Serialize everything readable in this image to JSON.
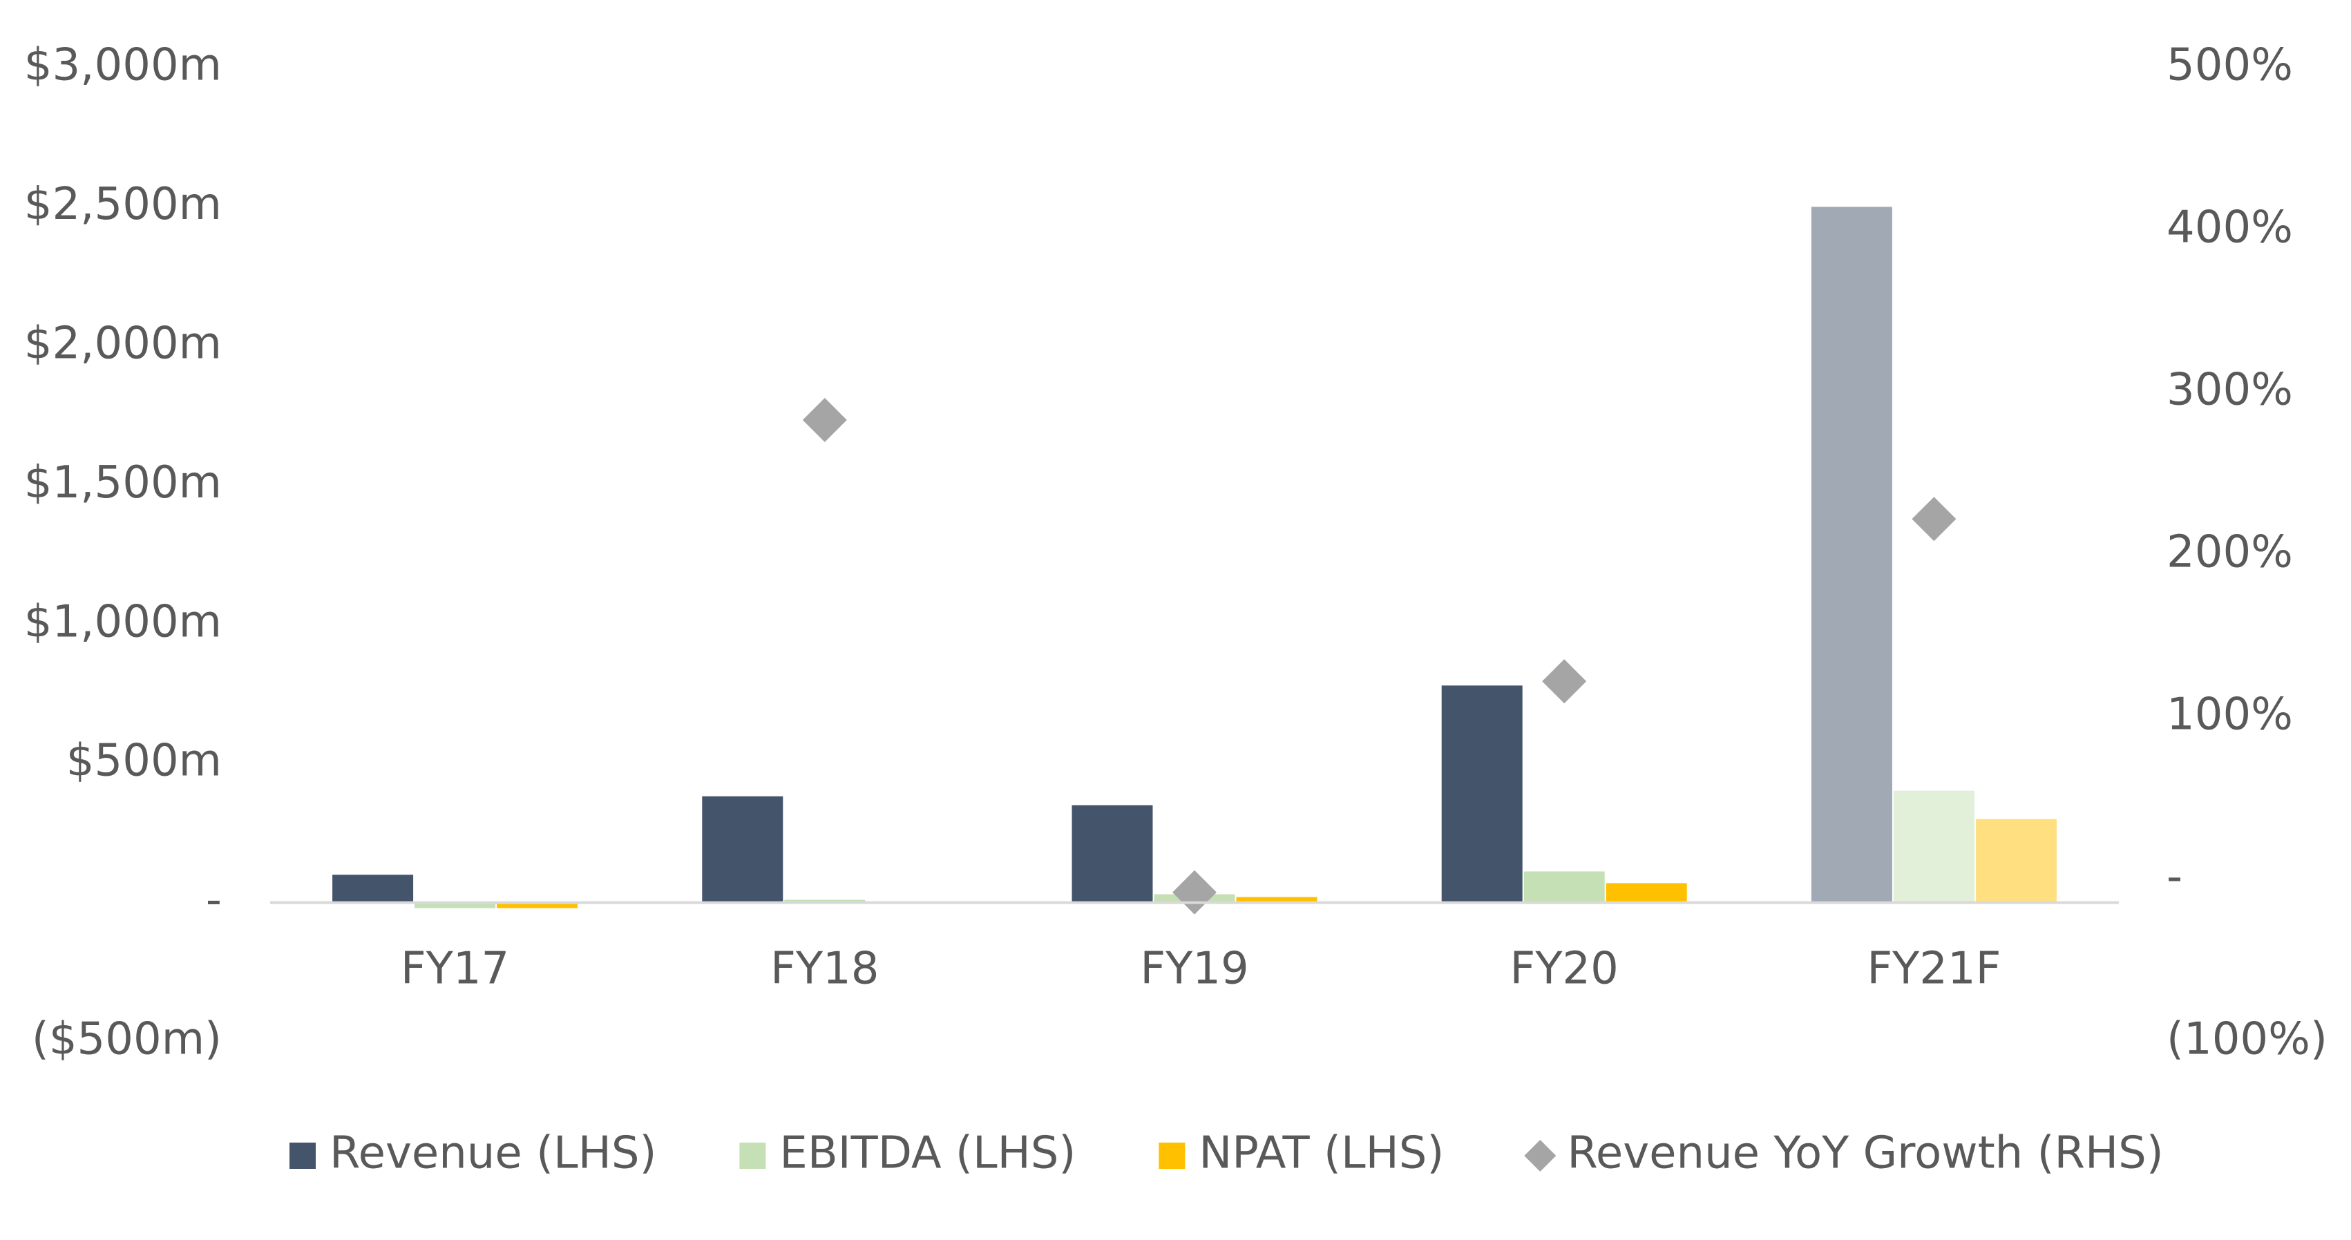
{
  "chart_data": {
    "type": "bar",
    "categories": [
      "FY17",
      "FY18",
      "FY19",
      "FY20",
      "FY21F"
    ],
    "forecast": [
      false,
      false,
      false,
      false,
      true
    ],
    "series": [
      {
        "name": "Revenue (LHS)",
        "color": "#44546a",
        "values": [
          100,
          382,
          350,
          780,
          2500
        ]
      },
      {
        "name": "EBITDA (LHS)",
        "color": "#c5e0b4",
        "values": [
          -20,
          10,
          30,
          112,
          402
        ]
      },
      {
        "name": "NPAT (LHS)",
        "color": "#ffc000",
        "values": [
          -20,
          0,
          20,
          70,
          300
        ]
      },
      {
        "name": "Revenue YoY Growth (RHS)",
        "color": "#a5a5a5",
        "type": "scatter",
        "marker": "diamond",
        "axis": "y2",
        "values": [
          null,
          283,
          -8,
          122,
          222
        ]
      }
    ],
    "ylim": [
      -500,
      3000
    ],
    "yticks": [
      {
        "value": -500,
        "label": "($500m)"
      },
      {
        "value": 0,
        "label": "-"
      },
      {
        "value": 500,
        "label": "$500m"
      },
      {
        "value": 1000,
        "label": "$1,000m"
      },
      {
        "value": 1500,
        "label": "$1,500m"
      },
      {
        "value": 2000,
        "label": "$2,000m"
      },
      {
        "value": 2500,
        "label": "$2,500m"
      },
      {
        "value": 3000,
        "label": "$3,000m"
      }
    ],
    "y2lim": [
      -100,
      500
    ],
    "y2ticks": [
      {
        "value": -100,
        "label": "(100%)"
      },
      {
        "value": 0,
        "label": "-"
      },
      {
        "value": 100,
        "label": "100%"
      },
      {
        "value": 200,
        "label": "200%"
      },
      {
        "value": 300,
        "label": "300%"
      },
      {
        "value": 400,
        "label": "400%"
      },
      {
        "value": 500,
        "label": "500%"
      }
    ],
    "grid": false,
    "legend": "bottom"
  }
}
